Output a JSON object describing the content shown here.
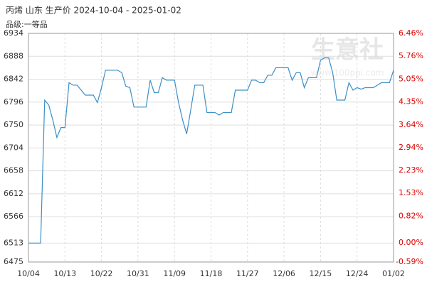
{
  "chart_data": {
    "type": "line",
    "title": "丙烯 山东 生产价 2024-10-04 - 2025-01-02",
    "subtitle": "品级:一等品",
    "watermark": "生意社",
    "watermark_url": "www.100ppi.com",
    "categories": [
      "10/04",
      null,
      null,
      null,
      null,
      null,
      null,
      null,
      null,
      "10/13",
      null,
      null,
      null,
      null,
      null,
      null,
      null,
      null,
      "10/22",
      null,
      null,
      null,
      null,
      null,
      null,
      null,
      null,
      "10/31",
      null,
      null,
      null,
      null,
      null,
      null,
      null,
      null,
      "11/09",
      null,
      null,
      null,
      null,
      null,
      null,
      null,
      null,
      "11/18",
      null,
      null,
      null,
      null,
      null,
      null,
      null,
      null,
      "11/27",
      null,
      null,
      null,
      null,
      null,
      null,
      null,
      null,
      "12/06",
      null,
      null,
      null,
      null,
      null,
      null,
      null,
      null,
      "12/15",
      null,
      null,
      null,
      null,
      null,
      null,
      null,
      null,
      "12/24",
      null,
      null,
      null,
      null,
      null,
      null,
      null,
      null,
      "01/02"
    ],
    "series": [
      {
        "name": "丙烯",
        "color": "#3a8fc8",
        "values": [
          6513,
          6513,
          6513,
          6513,
          6800,
          6790,
          6760,
          6725,
          6745,
          6745,
          6835,
          6830,
          6830,
          6820,
          6810,
          6810,
          6810,
          6795,
          6825,
          6860,
          6860,
          6860,
          6860,
          6855,
          6828,
          6825,
          6786,
          6786,
          6786,
          6786,
          6840,
          6815,
          6815,
          6845,
          6840,
          6840,
          6840,
          6795,
          6760,
          6732,
          6780,
          6830,
          6830,
          6830,
          6775,
          6775,
          6775,
          6770,
          6775,
          6775,
          6775,
          6820,
          6820,
          6820,
          6820,
          6840,
          6840,
          6835,
          6835,
          6850,
          6850,
          6865,
          6865,
          6865,
          6865,
          6840,
          6855,
          6855,
          6825,
          6845,
          6845,
          6845,
          6880,
          6885,
          6885,
          6855,
          6800,
          6800,
          6800,
          6835,
          6820,
          6825,
          6822,
          6825,
          6825,
          6825,
          6830,
          6835,
          6835,
          6835,
          6860
        ]
      }
    ],
    "ylim": [
      6475,
      6934
    ],
    "yticks": [
      6475,
      6513,
      6566,
      6612,
      6658,
      6704,
      6750,
      6796,
      6842,
      6888,
      6934
    ],
    "y2lim": [
      -0.59,
      6.46
    ],
    "y2ticks": [
      {
        "value": -0.59,
        "label": "-0.59%"
      },
      {
        "value": 0,
        "label": "0.00%"
      },
      {
        "value": 0.82,
        "label": "0.82%"
      },
      {
        "value": 1.53,
        "label": "1.53%"
      },
      {
        "value": 2.23,
        "label": "2.23%"
      },
      {
        "value": 2.94,
        "label": "2.94%"
      },
      {
        "value": 3.64,
        "label": "3.64%"
      },
      {
        "value": 4.35,
        "label": "4.35%"
      },
      {
        "value": 5.05,
        "label": "5.05%"
      },
      {
        "value": 5.76,
        "label": "5.76%"
      },
      {
        "value": 6.46,
        "label": "6.46%"
      }
    ],
    "grid": true
  }
}
